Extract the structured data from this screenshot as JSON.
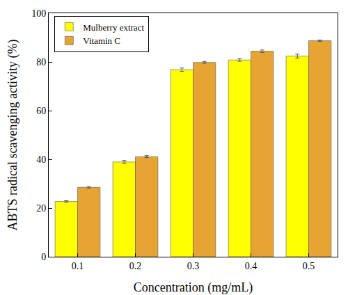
{
  "chart_data": {
    "type": "bar",
    "x_label": "Concentration (mg/mL)",
    "y_label": "ABTS radical scavenging activity (%)",
    "categories": [
      "0.1",
      "0.2",
      "0.3",
      "0.4",
      "0.5"
    ],
    "series": [
      {
        "name": "Mulberry extract",
        "color": "#ffff00",
        "values": [
          22.7,
          38.9,
          76.8,
          80.8,
          82.4
        ],
        "errors": [
          0.3,
          0.6,
          0.7,
          0.5,
          0.8
        ]
      },
      {
        "name": "Vitamin C",
        "color": "#e6a532",
        "values": [
          28.5,
          41.1,
          79.8,
          84.4,
          88.7
        ],
        "errors": [
          0.3,
          0.4,
          0.4,
          0.5,
          0.3
        ]
      }
    ],
    "ylim": [
      0,
      100
    ],
    "yticks": [
      0,
      20,
      40,
      60,
      80,
      100
    ],
    "grid": false,
    "legend": "upper left"
  }
}
